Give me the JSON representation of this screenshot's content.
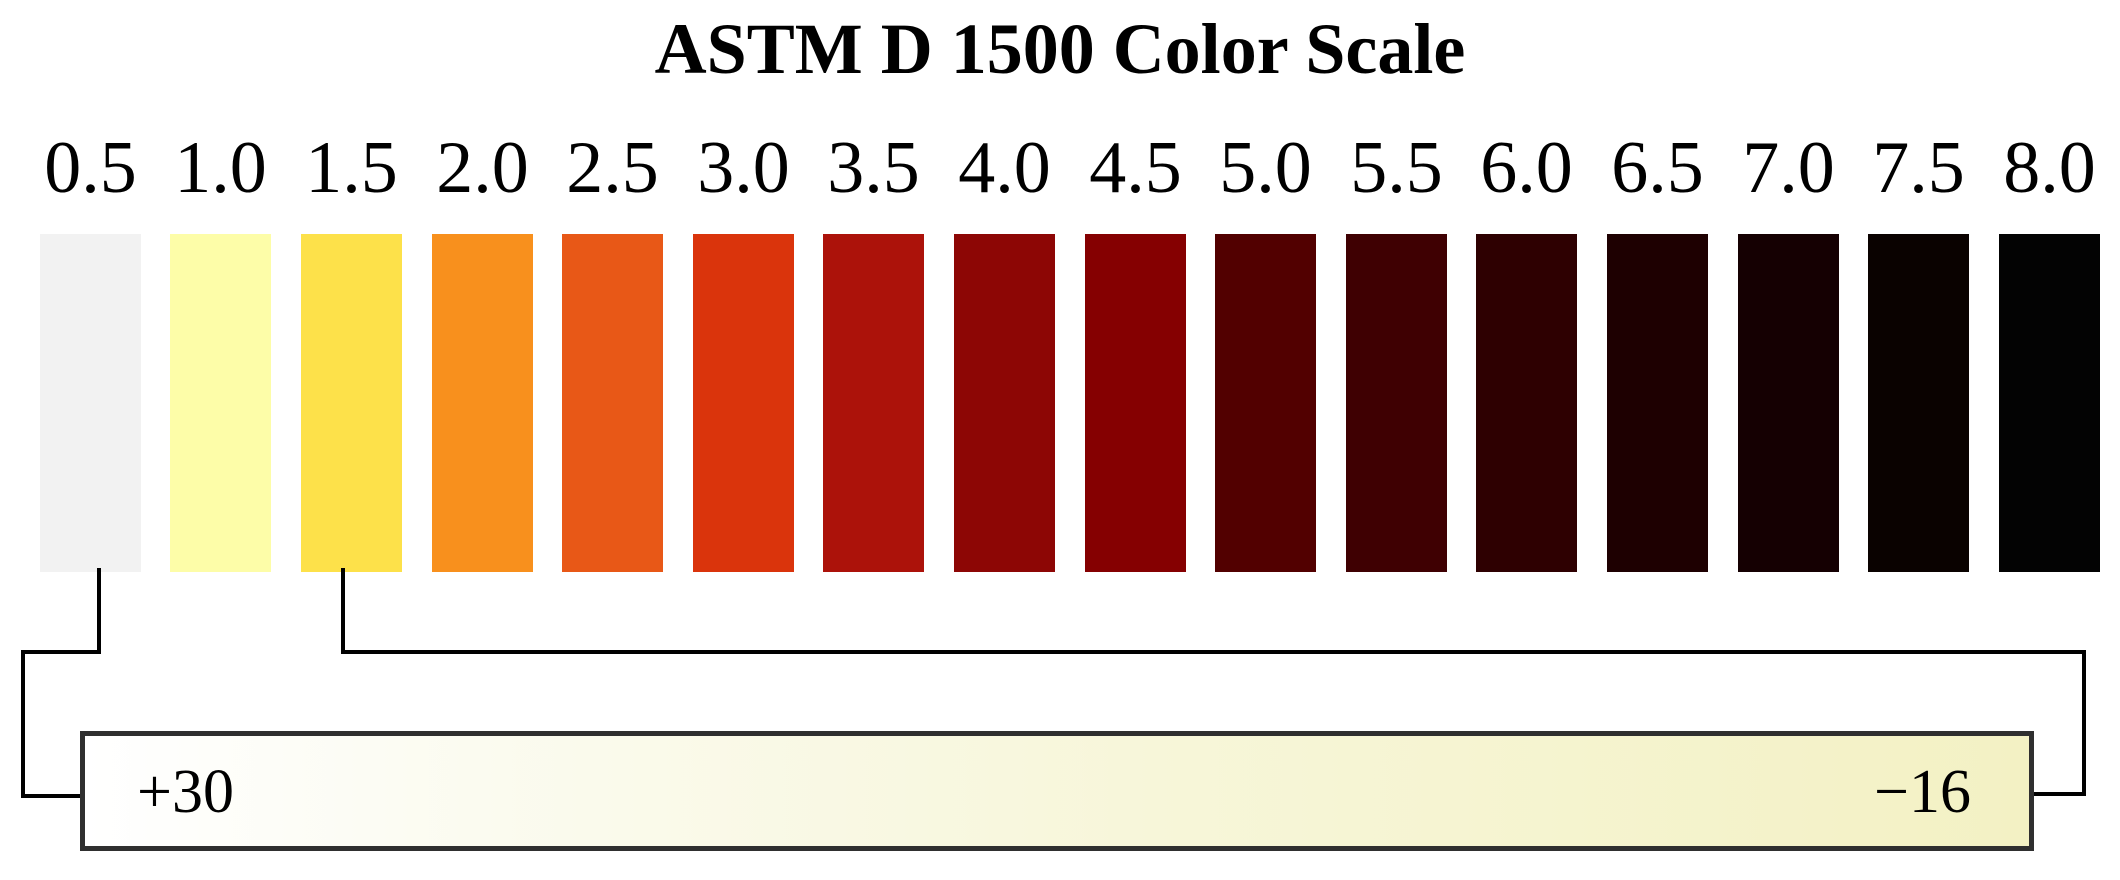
{
  "title": "ASTM D 1500 Color Scale",
  "swatches": [
    {
      "label": "0.5",
      "color": "#f2f2f2"
    },
    {
      "label": "1.0",
      "color": "#fdfda8"
    },
    {
      "label": "1.5",
      "color": "#fde14a"
    },
    {
      "label": "2.0",
      "color": "#f8901d"
    },
    {
      "label": "2.5",
      "color": "#e85817"
    },
    {
      "label": "3.0",
      "color": "#da340c"
    },
    {
      "label": "3.5",
      "color": "#ac120a"
    },
    {
      "label": "4.0",
      "color": "#8d0605"
    },
    {
      "label": "4.5",
      "color": "#850001"
    },
    {
      "label": "5.0",
      "color": "#520000"
    },
    {
      "label": "5.5",
      "color": "#3f0002"
    },
    {
      "label": "6.0",
      "color": "#2e0001"
    },
    {
      "label": "6.5",
      "color": "#1e0001"
    },
    {
      "label": "7.0",
      "color": "#150002"
    },
    {
      "label": "7.5",
      "color": "#0a0200"
    },
    {
      "label": "8.0",
      "color": "#030303"
    }
  ],
  "saybolt_scale": {
    "start_label": "+30",
    "end_label": "−16",
    "range_from": "0.5",
    "range_to": "1.5"
  }
}
